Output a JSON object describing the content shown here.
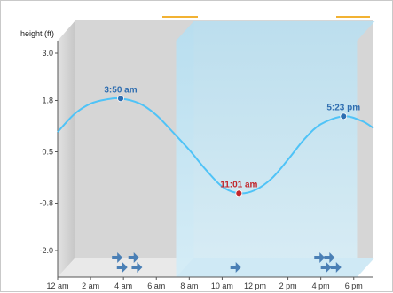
{
  "colors": {
    "curve": "#4fc3f7",
    "high": "#2e6db0",
    "low": "#c2272d",
    "daytime": "#bfe3f2",
    "night": "#cfcfcf",
    "arrow": "#4a7fb5",
    "top_accent": "#f2b233"
  },
  "chart_data": {
    "type": "line",
    "ylabel": "height (ft)",
    "y_ticks": [
      "3.0",
      "1.8",
      "0.5",
      "-0.8",
      "-2.0"
    ],
    "y_tick_values": [
      3.0,
      1.8,
      0.5,
      -0.8,
      -2.0
    ],
    "ylim": [
      -2.0,
      3.0
    ],
    "x_ticks": [
      "12 am",
      "2 am",
      "4 am",
      "6 am",
      "8 am",
      "10 am",
      "12 pm",
      "2 pm",
      "4 pm",
      "6 pm"
    ],
    "xlim_hours": [
      0,
      19.2
    ],
    "daytime_hours": [
      7.2,
      18.2
    ],
    "series": [
      {
        "points": [
          {
            "hour": 0.0,
            "height": 1.0
          },
          {
            "hour": 1.0,
            "height": 1.45
          },
          {
            "hour": 2.0,
            "height": 1.72
          },
          {
            "hour": 3.0,
            "height": 1.83
          },
          {
            "hour": 3.83,
            "height": 1.85
          },
          {
            "hour": 5.0,
            "height": 1.72
          },
          {
            "hour": 6.0,
            "height": 1.43
          },
          {
            "hour": 7.0,
            "height": 1.0
          },
          {
            "hour": 8.0,
            "height": 0.55
          },
          {
            "hour": 9.0,
            "height": 0.05
          },
          {
            "hour": 10.0,
            "height": -0.38
          },
          {
            "hour": 11.02,
            "height": -0.55
          },
          {
            "hour": 12.0,
            "height": -0.47
          },
          {
            "hour": 13.0,
            "height": -0.18
          },
          {
            "hour": 14.0,
            "height": 0.3
          },
          {
            "hour": 15.0,
            "height": 0.82
          },
          {
            "hour": 16.0,
            "height": 1.2
          },
          {
            "hour": 17.38,
            "height": 1.4
          },
          {
            "hour": 18.5,
            "height": 1.28
          },
          {
            "hour": 19.2,
            "height": 1.1
          }
        ]
      }
    ],
    "events": [
      {
        "label": "3:50 am",
        "hour": 3.83,
        "height": 1.85,
        "kind": "high"
      },
      {
        "label": "11:01 am",
        "hour": 11.02,
        "height": -0.55,
        "kind": "low"
      },
      {
        "label": "5:23 pm",
        "hour": 17.38,
        "height": 1.4,
        "kind": "high"
      }
    ],
    "arrow_hours": [
      3.3,
      4.3,
      3.6,
      4.5,
      10.5,
      15.6,
      16.2,
      16.6,
      16.0
    ],
    "arrow_rows": [
      0,
      0,
      1,
      1,
      1,
      0,
      0,
      1,
      1
    ],
    "grid": false
  }
}
